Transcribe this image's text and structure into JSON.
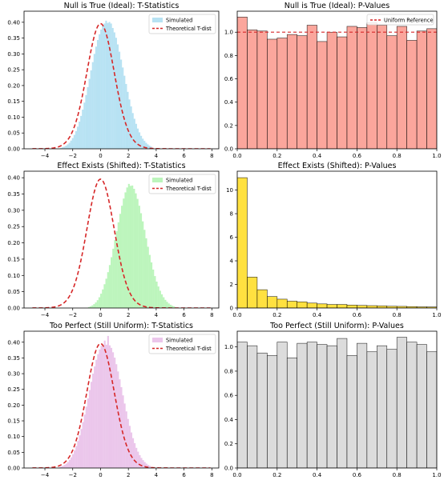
{
  "chart_data": [
    {
      "id": "null-t",
      "type": "histogram",
      "title": "Null is True (Ideal): T-Statistics",
      "xlim": [
        -5.5,
        8.5
      ],
      "ylim": [
        0,
        0.435
      ],
      "xticks": [
        -4,
        -2,
        0,
        2,
        4,
        6,
        8
      ],
      "xtick_labels": [
        "−4",
        "−2",
        "0",
        "2",
        "4",
        "6",
        "8"
      ],
      "yticks": [
        0,
        0.05,
        0.1,
        0.15,
        0.2,
        0.25,
        0.3,
        0.35,
        0.4
      ],
      "ytick_labels": [
        "0.00",
        "0.05",
        "0.10",
        "0.15",
        "0.20",
        "0.25",
        "0.30",
        "0.35",
        "0.40"
      ],
      "hist": {
        "name": "Simulated",
        "color": "#87ceeb",
        "alpha": 0.6,
        "edgecolor": "none",
        "bins": {
          "start": -2.9,
          "width": 0.12
        },
        "values": [
          0.003,
          0.005,
          0.007,
          0.01,
          0.014,
          0.019,
          0.026,
          0.034,
          0.044,
          0.056,
          0.07,
          0.086,
          0.104,
          0.124,
          0.146,
          0.17,
          0.195,
          0.221,
          0.248,
          0.274,
          0.3,
          0.323,
          0.344,
          0.362,
          0.377,
          0.389,
          0.396,
          0.405,
          0.398,
          0.401,
          0.396,
          0.382,
          0.368,
          0.351,
          0.33,
          0.307,
          0.282,
          0.257,
          0.231,
          0.205,
          0.18,
          0.156,
          0.134,
          0.113,
          0.095,
          0.079,
          0.064,
          0.052,
          0.041,
          0.032,
          0.025,
          0.019,
          0.014,
          0.01,
          0.007
        ]
      },
      "curve": {
        "name": "Theoretical T-dist",
        "color": "#d62728",
        "dash": "dashed",
        "df": 30,
        "shift": 0
      },
      "legend": {
        "position": "top-right",
        "entries": [
          "Simulated",
          "Theoretical T-dist"
        ]
      }
    },
    {
      "id": "null-p",
      "type": "histogram",
      "title": "Null is True (Ideal): P-Values",
      "xlim": [
        0,
        1
      ],
      "ylim": [
        0,
        1.18
      ],
      "xticks": [
        0,
        0.2,
        0.4,
        0.6,
        0.8,
        1.0
      ],
      "xtick_labels": [
        "0.0",
        "0.2",
        "0.4",
        "0.6",
        "0.8",
        "1.0"
      ],
      "yticks": [
        0,
        0.2,
        0.4,
        0.6,
        0.8,
        1.0
      ],
      "ytick_labels": [
        "0.0",
        "0.2",
        "0.4",
        "0.6",
        "0.8",
        "1.0"
      ],
      "hist": {
        "color": "#fa8072",
        "alpha": 0.7,
        "edgecolor": "#000000",
        "bins": {
          "start": 0,
          "width": 0.05
        },
        "values": [
          1.13,
          1.02,
          1.01,
          0.94,
          0.95,
          0.98,
          0.97,
          1.06,
          0.92,
          1.0,
          0.96,
          1.05,
          1.04,
          1.08,
          1.06,
          0.97,
          1.05,
          0.93,
          1.01,
          1.03
        ]
      },
      "reference": {
        "name": "Uniform Reference",
        "y": 1.0,
        "color": "#d62728",
        "dash": "dashed"
      },
      "legend": {
        "position": "top-right",
        "entries": [
          "Uniform Reference"
        ]
      }
    },
    {
      "id": "effect-t",
      "type": "histogram",
      "title": "Effect Exists (Shifted): T-Statistics",
      "xlim": [
        -5.5,
        8.5
      ],
      "ylim": [
        0,
        0.42
      ],
      "xticks": [
        -4,
        -2,
        0,
        2,
        4,
        6,
        8
      ],
      "xtick_labels": [
        "−4",
        "−2",
        "0",
        "2",
        "4",
        "6",
        "8"
      ],
      "yticks": [
        0,
        0.05,
        0.1,
        0.15,
        0.2,
        0.25,
        0.3,
        0.35,
        0.4
      ],
      "ytick_labels": [
        "0.00",
        "0.05",
        "0.10",
        "0.15",
        "0.20",
        "0.25",
        "0.30",
        "0.35",
        "0.40"
      ],
      "hist": {
        "name": "Simulated",
        "color": "#90ee90",
        "alpha": 0.6,
        "edgecolor": "none",
        "bins": {
          "start": -0.9,
          "width": 0.125
        },
        "values": [
          0.003,
          0.005,
          0.008,
          0.012,
          0.017,
          0.024,
          0.033,
          0.044,
          0.057,
          0.073,
          0.09,
          0.11,
          0.132,
          0.156,
          0.182,
          0.209,
          0.236,
          0.263,
          0.289,
          0.314,
          0.336,
          0.355,
          0.37,
          0.381,
          0.375,
          0.376,
          0.366,
          0.352,
          0.335,
          0.314,
          0.291,
          0.266,
          0.24,
          0.214,
          0.188,
          0.163,
          0.14,
          0.118,
          0.098,
          0.081,
          0.066,
          0.053,
          0.042,
          0.033,
          0.025,
          0.019,
          0.014,
          0.01,
          0.007,
          0.005
        ]
      },
      "curve": {
        "name": "Theoretical T-dist",
        "color": "#d62728",
        "dash": "dashed",
        "df": 30,
        "shift": 0
      },
      "legend": {
        "position": "top-right",
        "entries": [
          "Simulated",
          "Theoretical T-dist"
        ]
      }
    },
    {
      "id": "effect-p",
      "type": "histogram",
      "title": "Effect Exists (Shifted): P-Values",
      "xlim": [
        0,
        1
      ],
      "ylim": [
        0,
        11.6
      ],
      "xticks": [
        0,
        0.2,
        0.4,
        0.6,
        0.8,
        1.0
      ],
      "xtick_labels": [
        "0.0",
        "0.2",
        "0.4",
        "0.6",
        "0.8",
        "1.0"
      ],
      "yticks": [
        0,
        2,
        4,
        6,
        8,
        10
      ],
      "ytick_labels": [
        "0",
        "2",
        "4",
        "6",
        "8",
        "10"
      ],
      "hist": {
        "color": "#ffd700",
        "alpha": 0.75,
        "edgecolor": "#000000",
        "bins": {
          "start": 0,
          "width": 0.05
        },
        "values": [
          11.05,
          2.62,
          1.55,
          0.97,
          0.75,
          0.58,
          0.52,
          0.42,
          0.35,
          0.3,
          0.3,
          0.25,
          0.22,
          0.2,
          0.18,
          0.15,
          0.14,
          0.12,
          0.1,
          0.09
        ]
      }
    },
    {
      "id": "perfect-t",
      "type": "histogram",
      "title": "Too Perfect (Still Uniform): T-Statistics",
      "xlim": [
        -5.5,
        8.5
      ],
      "ylim": [
        0,
        0.435
      ],
      "xticks": [
        -4,
        -2,
        0,
        2,
        4,
        6,
        8
      ],
      "xtick_labels": [
        "−4",
        "−2",
        "0",
        "2",
        "4",
        "6",
        "8"
      ],
      "yticks": [
        0,
        0.05,
        0.1,
        0.15,
        0.2,
        0.25,
        0.3,
        0.35,
        0.4
      ],
      "ytick_labels": [
        "0.00",
        "0.05",
        "0.10",
        "0.15",
        "0.20",
        "0.25",
        "0.30",
        "0.35",
        "0.40"
      ],
      "hist": {
        "name": "Simulated",
        "color": "#dda0dd",
        "alpha": 0.6,
        "edgecolor": "none",
        "bins": {
          "start": -3.0,
          "width": 0.12
        },
        "values": [
          0.003,
          0.005,
          0.007,
          0.01,
          0.014,
          0.019,
          0.026,
          0.034,
          0.044,
          0.056,
          0.07,
          0.086,
          0.104,
          0.124,
          0.146,
          0.17,
          0.195,
          0.221,
          0.248,
          0.274,
          0.3,
          0.323,
          0.344,
          0.362,
          0.377,
          0.389,
          0.384,
          0.405,
          0.392,
          0.42,
          0.39,
          0.382,
          0.368,
          0.351,
          0.33,
          0.307,
          0.282,
          0.257,
          0.231,
          0.205,
          0.18,
          0.156,
          0.134,
          0.113,
          0.095,
          0.079,
          0.064,
          0.052,
          0.041,
          0.032,
          0.025,
          0.019,
          0.014,
          0.01,
          0.007
        ]
      },
      "curve": {
        "name": "Theoretical T-dist",
        "color": "#d62728",
        "dash": "dashed",
        "df": 30,
        "shift": 0
      },
      "legend": {
        "position": "top-right",
        "entries": [
          "Simulated",
          "Theoretical T-dist"
        ]
      }
    },
    {
      "id": "perfect-p",
      "type": "histogram",
      "title": "Too Perfect (Still Uniform): P-Values",
      "xlim": [
        0,
        1
      ],
      "ylim": [
        0,
        1.13
      ],
      "xticks": [
        0,
        0.2,
        0.4,
        0.6,
        0.8,
        1.0
      ],
      "xtick_labels": [
        "0.0",
        "0.2",
        "0.4",
        "0.6",
        "0.8",
        "1.0"
      ],
      "yticks": [
        0,
        0.2,
        0.4,
        0.6,
        0.8,
        1.0
      ],
      "ytick_labels": [
        "0.0",
        "0.2",
        "0.4",
        "0.6",
        "0.8",
        "1.0"
      ],
      "hist": {
        "color": "#d3d3d3",
        "alpha": 0.8,
        "edgecolor": "#000000",
        "bins": {
          "start": 0,
          "width": 0.05
        },
        "values": [
          1.04,
          1.01,
          0.95,
          0.93,
          1.04,
          0.91,
          1.03,
          1.04,
          1.02,
          1.01,
          1.07,
          0.93,
          1.03,
          0.96,
          1.01,
          0.98,
          1.08,
          1.04,
          1.02,
          0.96
        ]
      }
    }
  ]
}
